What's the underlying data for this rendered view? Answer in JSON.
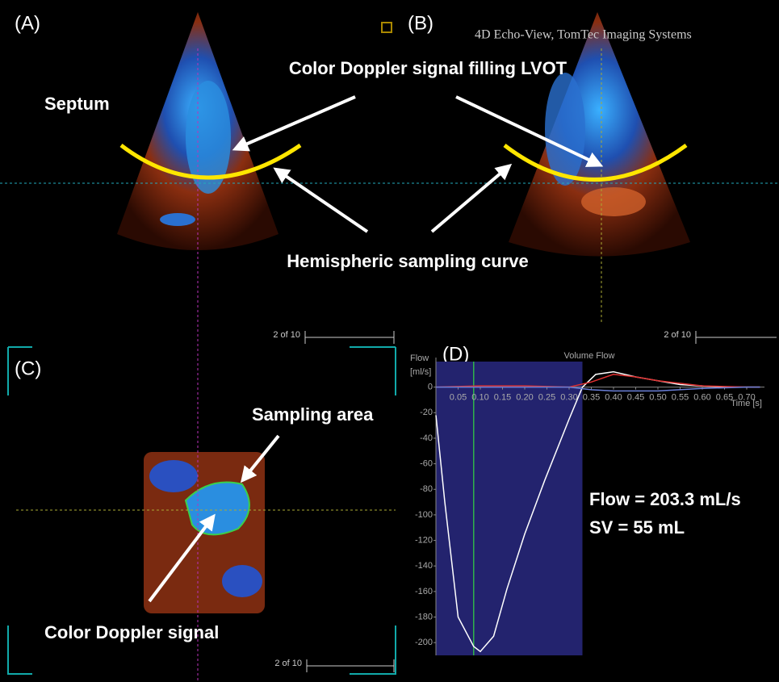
{
  "panels": {
    "a": "(A)",
    "b": "(B)",
    "c": "(C)",
    "d": "(D)"
  },
  "software": "4D Echo-View, TomTec Imaging Systems",
  "annotations": {
    "lvot": "Color Doppler signal filling LVOT",
    "septum": "Septum",
    "curve": "Hemispheric sampling curve",
    "area": "Sampling area",
    "signal": "Color Doppler signal"
  },
  "frame_labels": [
    "2 of 10",
    "2 of 10",
    "2 of 10"
  ],
  "results": {
    "flow": "Flow = 203.3 mL/s",
    "sv": "SV = 55 mL"
  },
  "chart_data": {
    "type": "line",
    "title": "Volume Flow",
    "y_label": "Flow",
    "y_unit": "[ml/s]",
    "x_label": "Time [s]",
    "xlim": [
      0,
      0.74
    ],
    "ylim": [
      -210,
      20
    ],
    "xticks": [
      0.05,
      {
        "value": 0.1,
        "label": "0.10"
      },
      0.15,
      {
        "value": 0.2,
        "label": "0.20"
      },
      0.25,
      {
        "value": 0.3,
        "label": "0.30"
      },
      0.35,
      {
        "value": 0.4,
        "label": "0.40"
      },
      0.45,
      {
        "value": 0.5,
        "label": "0.50"
      },
      0.55,
      {
        "value": 0.6,
        "label": "0.60"
      },
      0.65,
      {
        "value": 0.7,
        "label": "0.70"
      }
    ],
    "yticks": [
      0,
      -20,
      -40,
      -60,
      -80,
      -100,
      -120,
      -140,
      -160,
      -180,
      -200
    ],
    "highlight": [
      0,
      0.33
    ],
    "highlight_color": "#23236e",
    "marker_x": 0.085,
    "marker_color": "#2fb34a",
    "series": [
      {
        "color": "#ffffff",
        "x": [
          0,
          0.02,
          0.05,
          0.085,
          0.1,
          0.13,
          0.16,
          0.2,
          0.245,
          0.3,
          0.33,
          0.36,
          0.4,
          0.45,
          0.5,
          0.55,
          0.6,
          0.65,
          0.7,
          0.73
        ],
        "values": [
          -22,
          -90,
          -180,
          -203,
          -207,
          -195,
          -158,
          -115,
          -73,
          -25,
          0,
          10,
          12,
          8,
          5,
          2,
          1,
          0,
          0,
          0
        ]
      },
      {
        "color": "#e03030",
        "x": [
          0,
          0.1,
          0.2,
          0.3,
          0.35,
          0.4,
          0.45,
          0.5,
          0.6,
          0.7,
          0.73
        ],
        "values": [
          0,
          1,
          1,
          0,
          4,
          10,
          8,
          5,
          1,
          0,
          0
        ]
      },
      {
        "color": "#6a7fd8",
        "x": [
          0,
          0.3,
          0.35,
          0.4,
          0.5,
          0.6,
          0.7,
          0.73
        ],
        "values": [
          0,
          0,
          -2,
          -3,
          -3,
          -1,
          0,
          0
        ]
      }
    ]
  }
}
